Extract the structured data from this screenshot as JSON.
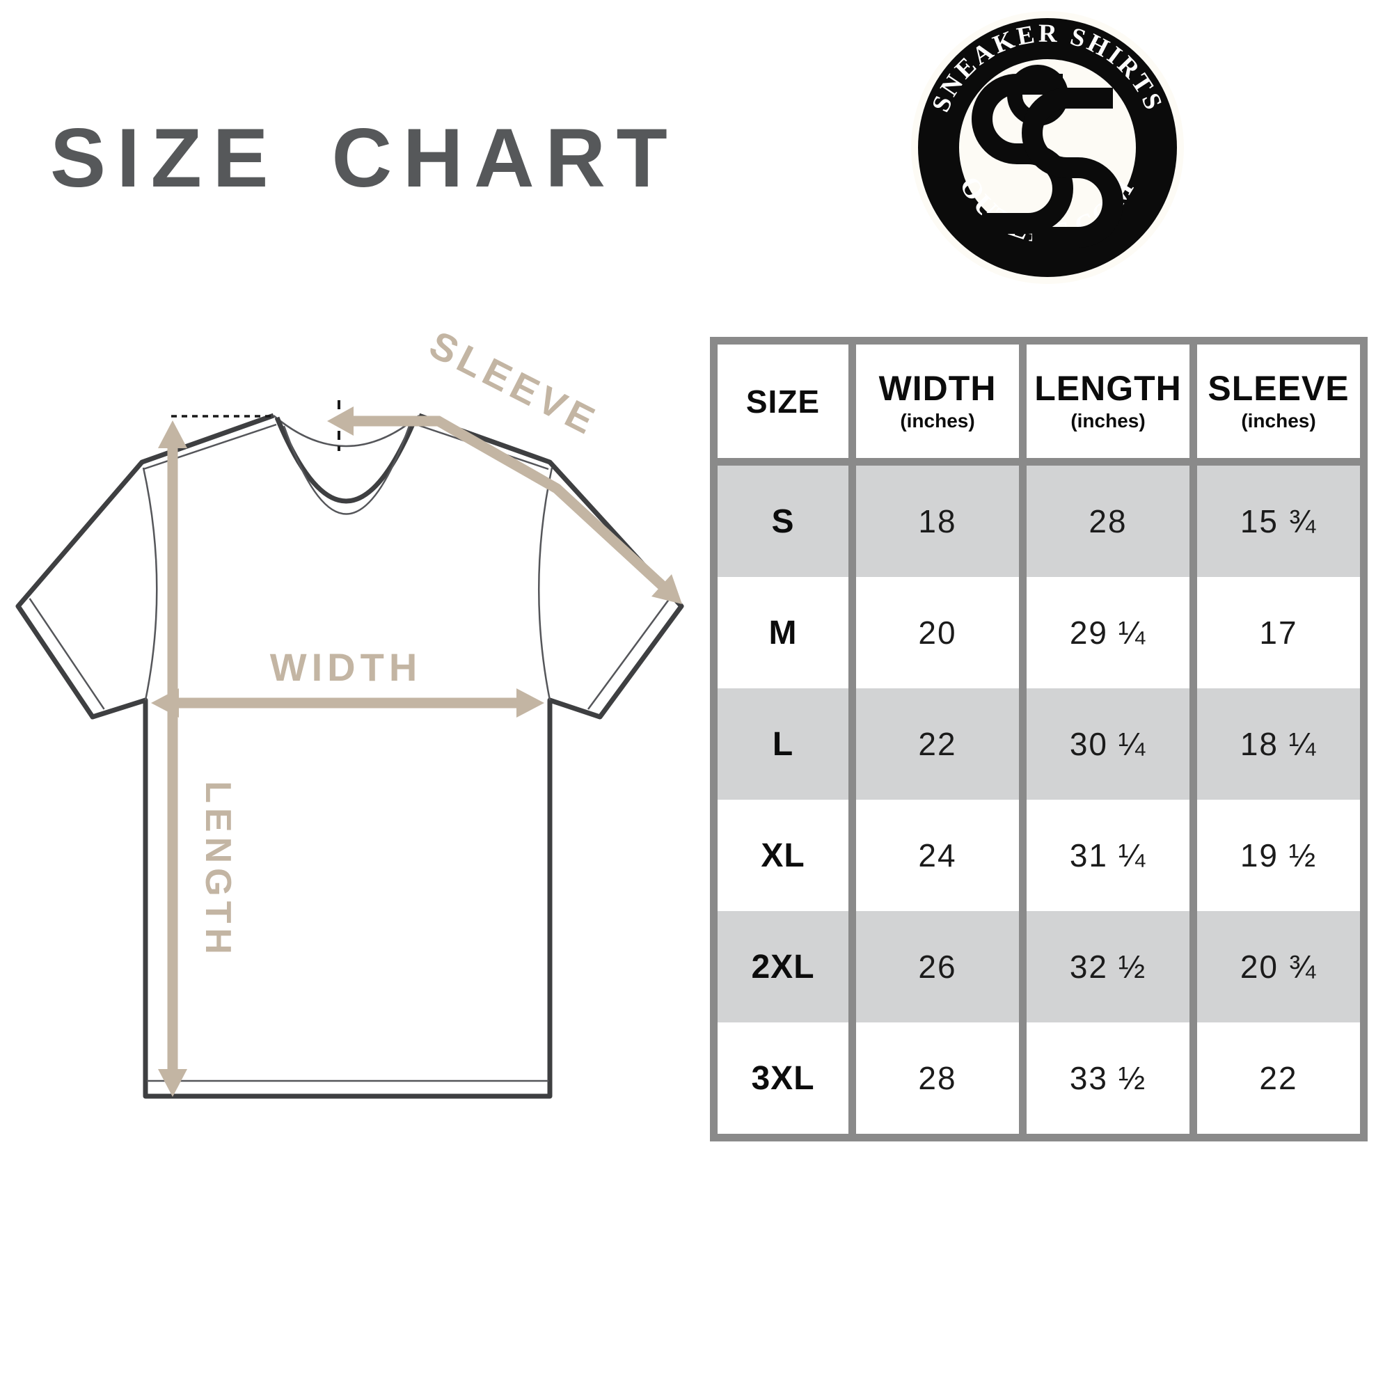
{
  "title": "SIZE CHART",
  "colors": {
    "title": "#56585a",
    "outline": "#3e3f41",
    "arrow": "#c3b5a3",
    "table_border": "#8a8a8a",
    "shaded_row": "#d2d3d4"
  },
  "logo": {
    "top_text": "SNEAKER SHIRTS",
    "bottom_text": "OUTLET.COM",
    "monogram": "SSO"
  },
  "diagram": {
    "labels": {
      "sleeve": "SLEEVE",
      "width": "WIDTH",
      "length": "LENGTH"
    }
  },
  "table": {
    "columns": [
      {
        "label": "SIZE",
        "sub": ""
      },
      {
        "label": "WIDTH",
        "sub": "(inches)"
      },
      {
        "label": "LENGTH",
        "sub": "(inches)"
      },
      {
        "label": "SLEEVE",
        "sub": "(inches)"
      }
    ],
    "rows": [
      {
        "size": "S",
        "width": "18",
        "length": "28",
        "sleeve": "15 ¾",
        "shaded": true
      },
      {
        "size": "M",
        "width": "20",
        "length": "29 ¼",
        "sleeve": "17",
        "shaded": false
      },
      {
        "size": "L",
        "width": "22",
        "length": "30 ¼",
        "sleeve": "18 ¼",
        "shaded": true
      },
      {
        "size": "XL",
        "width": "24",
        "length": "31 ¼",
        "sleeve": "19 ½",
        "shaded": false
      },
      {
        "size": "2XL",
        "width": "26",
        "length": "32 ½",
        "sleeve": "20 ¾",
        "shaded": true
      },
      {
        "size": "3XL",
        "width": "28",
        "length": "33 ½",
        "sleeve": "22",
        "shaded": false
      }
    ]
  }
}
